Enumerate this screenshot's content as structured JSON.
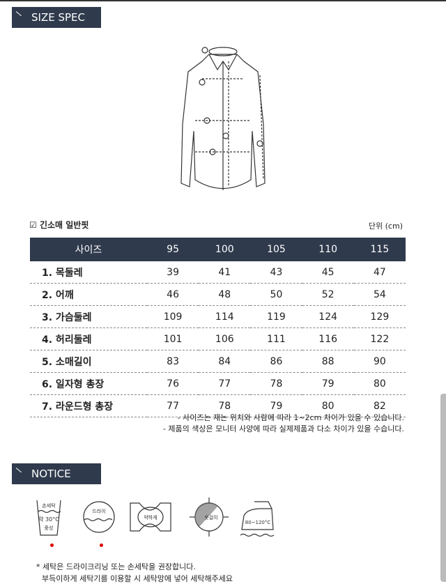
{
  "headers": {
    "spec": "SIZE SPEC",
    "notice": "NOTICE"
  },
  "subtitle": "긴소매 일반핏",
  "unit": "단위 (cm)",
  "table": {
    "columns": [
      "사이즈",
      "95",
      "100",
      "105",
      "110",
      "115"
    ],
    "rows": [
      [
        "1. 목둘레",
        "39",
        "41",
        "43",
        "45",
        "47"
      ],
      [
        "2. 어깨",
        "46",
        "48",
        "50",
        "52",
        "54"
      ],
      [
        "3. 가슴둘레",
        "109",
        "114",
        "119",
        "124",
        "129"
      ],
      [
        "4. 허리둘레",
        "101",
        "106",
        "111",
        "116",
        "122"
      ],
      [
        "5. 소매길이",
        "83",
        "84",
        "86",
        "88",
        "90"
      ],
      [
        "6. 일자형 총장",
        "76",
        "77",
        "78",
        "79",
        "80"
      ],
      [
        "7. 라운드형 총장",
        "77",
        "78",
        "79",
        "80",
        "82"
      ]
    ]
  },
  "notes": [
    "- 사이즈는 재는 위치와 사람에 따라 1~2cm 차이가 있을 수 있습니다.",
    "- 제품의 색상은 모니터 사양에 따라 실제제품과 다소 차이가 있을 수습니다."
  ],
  "care_icons": {
    "hand_wash": "손세탁",
    "hand_temp": "약 30°C",
    "hand_neutral": "중성",
    "dry": "드라이",
    "gentle": "약하게",
    "hanger": "옷걸이",
    "iron": "80~120°C"
  },
  "care_text": [
    "* 세탁은 드라이크리닝 또는 손세탁을 권장합니다.",
    "부득이하게 세탁기를 이용할 시 세탁망에 넣어 세탁해주세요"
  ],
  "colors": {
    "header_bg": "#2f3a4c",
    "dot": "#dd0000"
  }
}
